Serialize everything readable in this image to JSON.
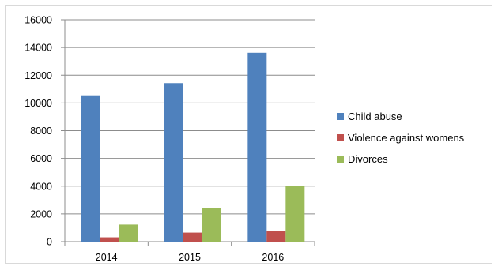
{
  "chart_data": {
    "type": "bar",
    "categories": [
      "2014",
      "2015",
      "2016"
    ],
    "series": [
      {
        "name": "Child abuse",
        "color": "#4f81bd",
        "values": [
          10550,
          11430,
          13620
        ]
      },
      {
        "name": "Violence against womens",
        "color": "#c0504d",
        "values": [
          310,
          650,
          780
        ]
      },
      {
        "name": "Divorces",
        "color": "#9bbb59",
        "values": [
          1230,
          2430,
          4000
        ]
      }
    ],
    "title": "",
    "xlabel": "",
    "ylabel": "",
    "ylim": [
      0,
      16000
    ],
    "yticks": [
      0,
      2000,
      4000,
      6000,
      8000,
      10000,
      12000,
      14000,
      16000
    ],
    "grid": true,
    "legend_position": "right"
  }
}
